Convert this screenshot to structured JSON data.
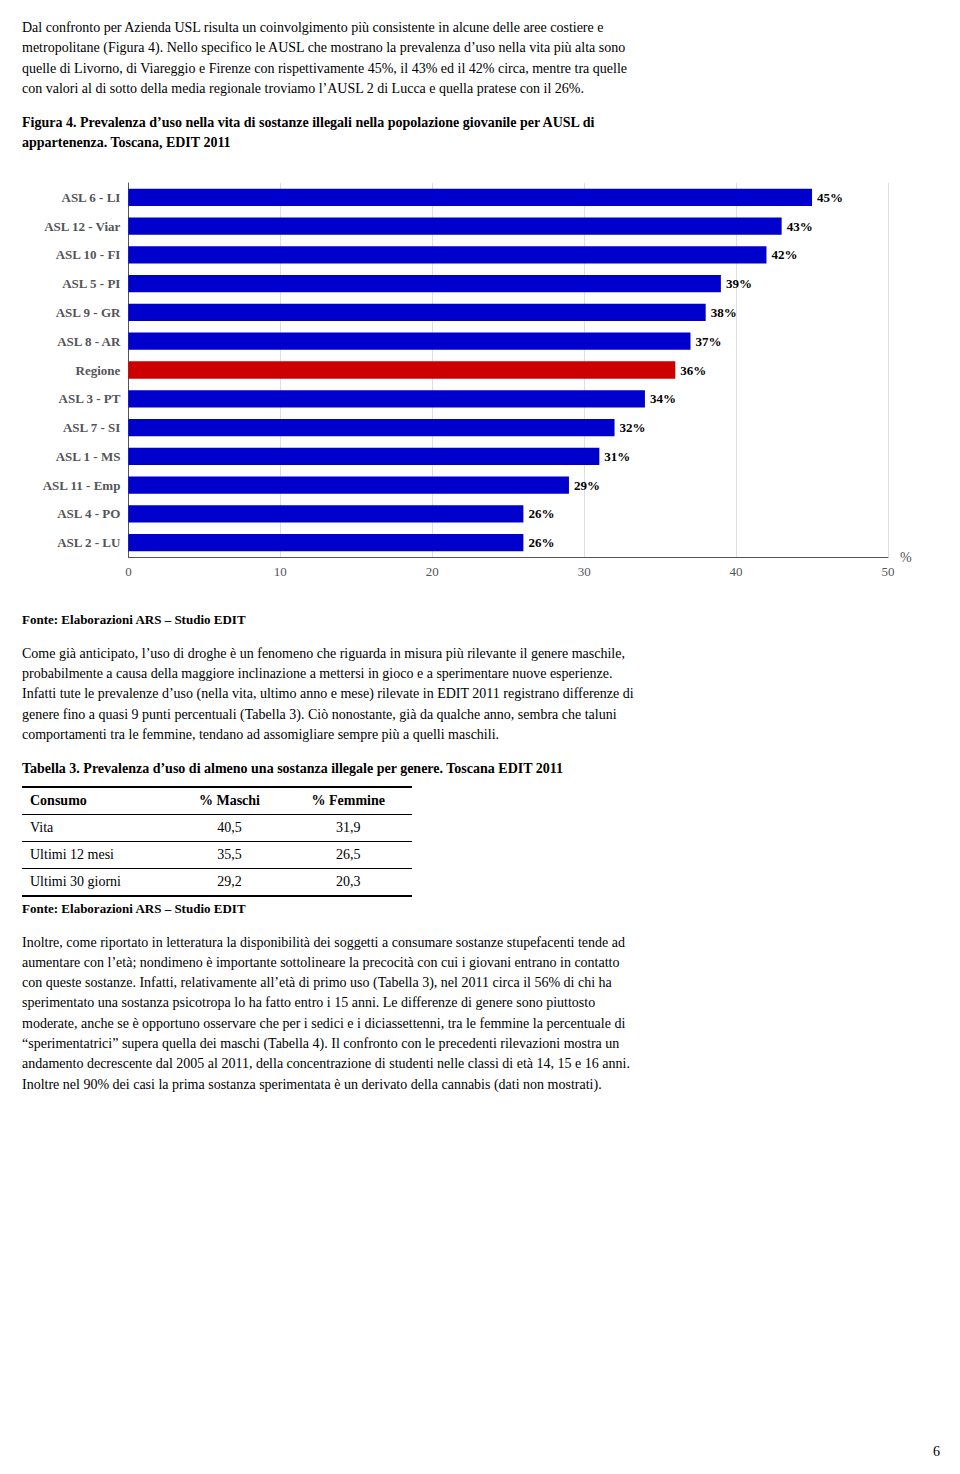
{
  "chart_data": [
    {
      "type": "bar",
      "title": "Figura 4. Prevalenza d’uso nella vita di sostanze illegali nella popolazione giovanile per AUSL di\nappartenenza. Toscana, EDIT 2011",
      "orientation": "horizontal",
      "categories": [
        "ASL 6 - LI",
        "ASL 12 - Viar",
        "ASL 10 - FI",
        "ASL 5 - PI",
        "ASL 9 - GR",
        "ASL 8 - AR",
        "Regione",
        "ASL 3 - PT",
        "ASL 7 - SI",
        "ASL 1 - MS",
        "ASL 11 - Emp",
        "ASL 4 - PO",
        "ASL 2 - LU"
      ],
      "values": [
        45,
        43,
        42,
        39,
        38,
        37,
        36,
        34,
        32,
        31,
        29,
        26,
        26
      ],
      "value_labels": [
        "45%",
        "43%",
        "42%",
        "39%",
        "38%",
        "37%",
        "36%",
        "34%",
        "32%",
        "31%",
        "29%",
        "26%",
        "26%"
      ],
      "data_labels": true,
      "colors": [
        "#0000CD",
        "#0000CD",
        "#0000CD",
        "#0000CD",
        "#0000CD",
        "#0000CD",
        "#CC0000",
        "#0000CD",
        "#0000CD",
        "#0000CD",
        "#0000CD",
        "#0000CD",
        "#0000CD"
      ],
      "xlabel": "%",
      "xlim": [
        0,
        50
      ],
      "xticks": [
        0,
        10,
        20,
        30,
        40,
        50
      ],
      "grid": true,
      "source": "Fonte: Elaborazioni ARS – Studio EDIT"
    },
    {
      "type": "table",
      "title": "Tabella 3. Prevalenza d’uso di almeno una sostanza illegale per genere. Toscana EDIT 2011",
      "columns": [
        "Consumo",
        "% Maschi",
        "% Femmine"
      ],
      "rows": [
        [
          "Vita",
          "40,5",
          "31,9"
        ],
        [
          "Ultimi 12 mesi",
          "35,5",
          "26,5"
        ],
        [
          "Ultimi 30 giorni",
          "29,2",
          "20,3"
        ]
      ],
      "source": "Fonte: Elaborazioni ARS – Studio EDIT"
    }
  ],
  "annotations": [
    "Dal confronto per Azienda USL risulta un coinvolgimento più consistente in alcune delle aree costiere e\nmetropolitane (Figura 4). Nello specifico le AUSL che mostrano la prevalenza d’uso nella vita più alta sono\nquelle di Livorno, di Viareggio e Firenze con rispettivamente 45%, il 43% ed il 42% circa, mentre tra quelle\ncon valori al di sotto della media regionale troviamo l’AUSL 2 di Lucca e quella pratese con il 26%.",
    "Come già anticipato, l’uso di droghe è un fenomeno che riguarda in misura più rilevante il genere maschile,\nprobabilmente a causa della maggiore inclinazione a mettersi in gioco e a sperimentare nuove esperienze.\nInfatti tute le prevalenze d’uso (nella vita, ultimo anno e mese) rilevate in EDIT 2011 registrano differenze di\ngenere fino a quasi 9 punti percentuali (Tabella 3). Ciò nonostante, già da qualche anno, sembra che taluni\ncomportamenti tra le femmine, tendano ad assomigliare sempre più a quelli maschili.",
    "Inoltre, come riportato in letteratura la disponibilità dei soggetti a consumare sostanze stupefacenti tende ad\naumentare con l’età; nondimeno è importante sottolineare la precocità con cui i giovani entrano in contatto\ncon queste sostanze. Infatti, relativamente all’età di primo uso (Tabella 3), nel 2011 circa il 56% di chi ha\nsperimentato una sostanza psicotropa lo ha fatto entro i 15 anni. Le differenze di genere sono piuttosto\nmoderate, anche se è opportuno osservare che per i sedici e i diciassettenni, tra le femmine la percentuale di\n“sperimentatrici” supera quella dei maschi (Tabella 4). Il confronto con le precedenti rilevazioni mostra un\nandamento decrescente dal 2005 al 2011, della concentrazione di studenti nelle classi di età 14, 15 e 16 anni.\nInoltre nel 90% dei casi la prima sostanza sperimentata è un derivato della cannabis (dati non mostrati).",
    "6"
  ]
}
